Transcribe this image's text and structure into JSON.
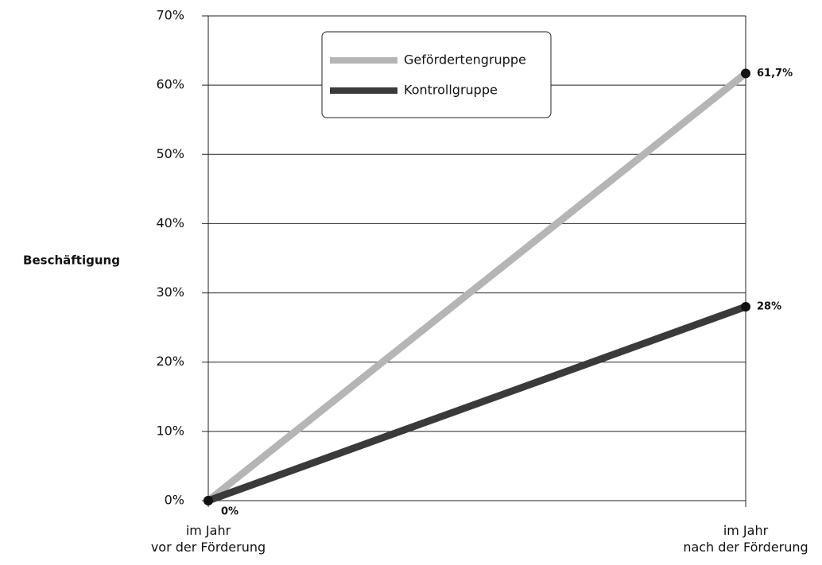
{
  "chart_data": {
    "type": "line",
    "y_label": "Beschäftigung",
    "categories": [
      "im Jahr\nvor der Förderung",
      "im Jahr\nnach der Förderung"
    ],
    "series": [
      {
        "name": "Gefördertengruppe",
        "color": "#b5b5b5",
        "values": [
          0,
          61.7
        ],
        "value_labels": [
          null,
          "61,7%"
        ]
      },
      {
        "name": "Kontrollgruppe",
        "color": "#3a3a3a",
        "values": [
          0,
          28
        ],
        "value_labels": [
          "0%",
          "28%"
        ]
      }
    ],
    "ylim": [
      0,
      70
    ],
    "yticks": [
      {
        "value": 0,
        "label": "0%"
      },
      {
        "value": 10,
        "label": "10%"
      },
      {
        "value": 20,
        "label": "20%"
      },
      {
        "value": 30,
        "label": "30%"
      },
      {
        "value": 40,
        "label": "40%"
      },
      {
        "value": 50,
        "label": "50%"
      },
      {
        "value": 60,
        "label": "60%"
      },
      {
        "value": 70,
        "label": "70%"
      }
    ],
    "grid": true,
    "legend": "top"
  }
}
